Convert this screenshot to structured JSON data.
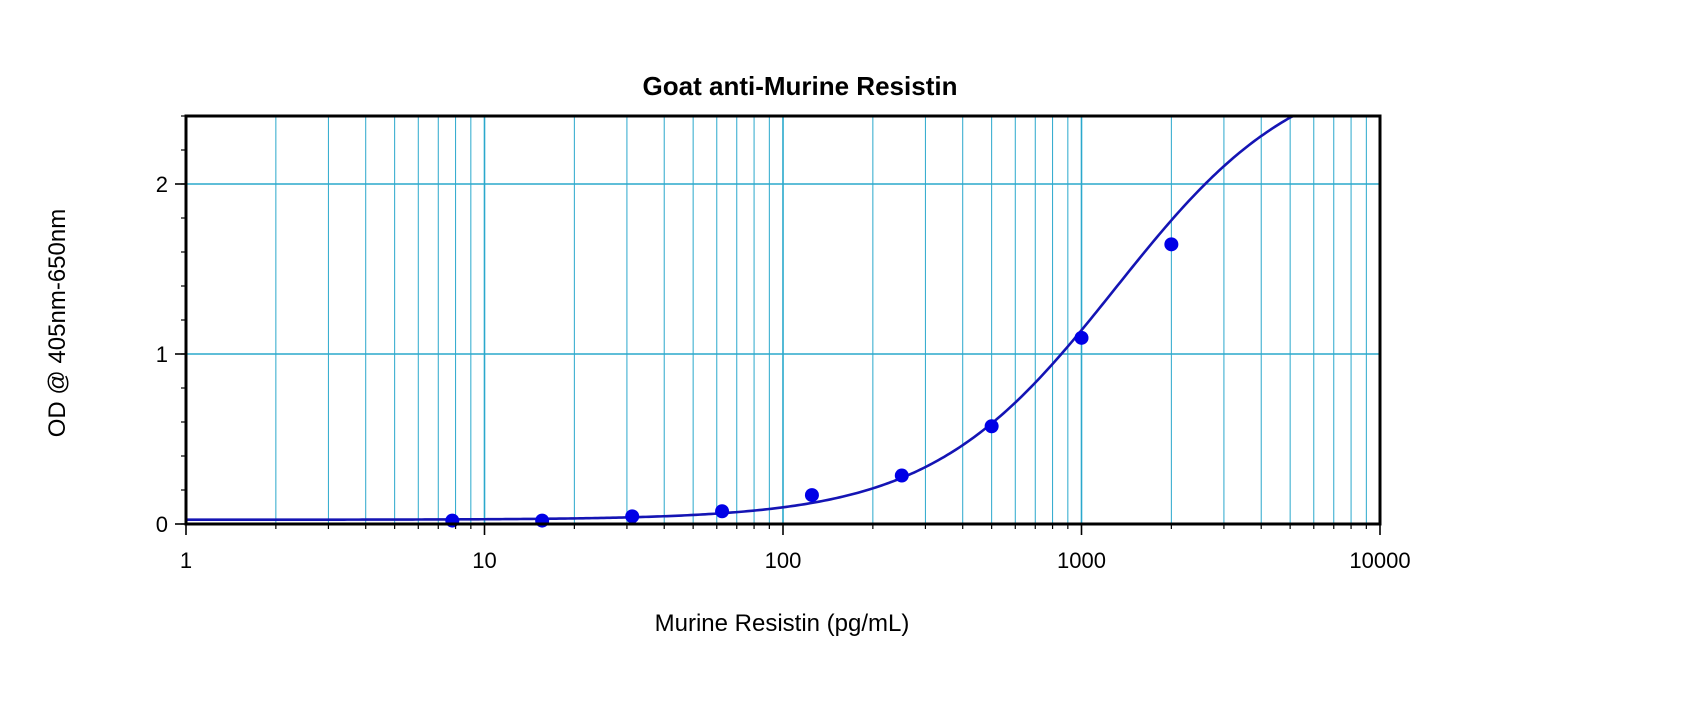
{
  "chart_data": {
    "type": "scatter",
    "title": "Goat anti-Murine Resistin",
    "xlabel": "Murine Resistin (pg/mL)",
    "ylabel": "OD @ 405nm-650nm",
    "x_scale": "log",
    "xlim": [
      1,
      10000
    ],
    "ylim": [
      0,
      2.4
    ],
    "x_ticks": [
      1,
      10,
      100,
      1000,
      10000
    ],
    "x_tick_labels": [
      "1",
      "10",
      "100",
      "1000",
      "10000"
    ],
    "y_ticks": [
      0,
      1,
      2
    ],
    "y_tick_labels": [
      "0",
      "1",
      "2"
    ],
    "grid": true,
    "legend": "none",
    "series": [
      {
        "x": [
          7.8,
          15.6,
          31.25,
          62.5,
          125,
          250,
          500,
          1000,
          2000
        ],
        "y": [
          0.02,
          0.02,
          0.045,
          0.075,
          0.17,
          0.285,
          0.575,
          1.095,
          1.645
        ],
        "fit": "4PL",
        "fit_params": {
          "A": 0.025,
          "D": 2.75,
          "C": 1300,
          "B": 1.4
        }
      }
    ],
    "colors": {
      "points": "#0000e6",
      "curve": "#1414b4",
      "grid": "#2aa8cc",
      "axes": "#000000"
    }
  }
}
